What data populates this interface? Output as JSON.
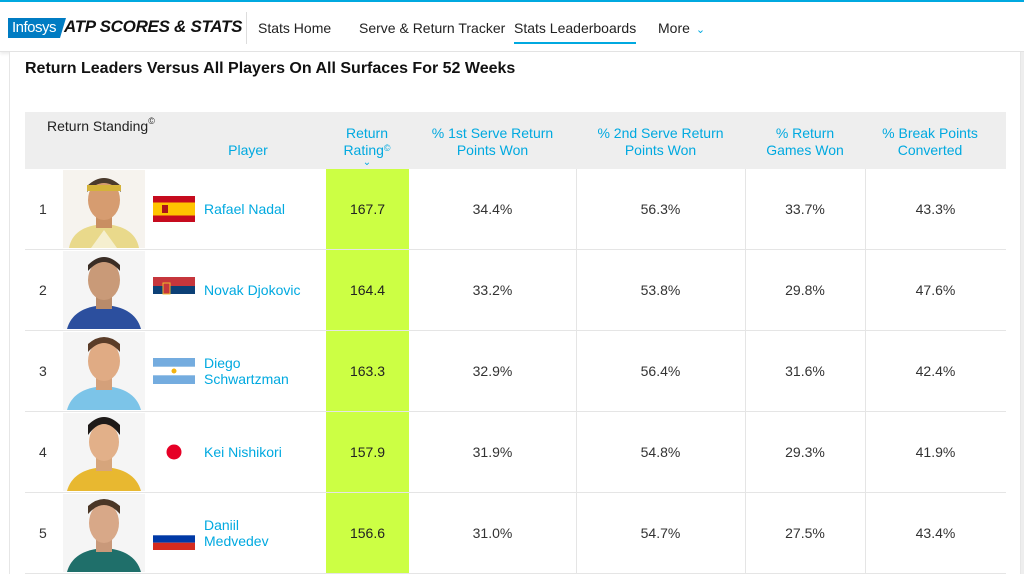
{
  "nav": {
    "infosys_logo": "Infosys",
    "brand": "ATP SCORES & STATS",
    "items": [
      {
        "label": "Stats Home"
      },
      {
        "label": "Serve & Return Tracker"
      },
      {
        "label": "Stats Leaderboards"
      },
      {
        "label": "More"
      }
    ],
    "active_item": "Stats Leaderboards",
    "accent": "#00a9e0"
  },
  "page": {
    "title": "Return Leaders Versus All Players On All Surfaces For 52 Weeks"
  },
  "table": {
    "headers": {
      "standing": "Return Standing",
      "player": "Player",
      "rating_l1": "Return",
      "rating_l2": "Rating",
      "first_l1": "% 1st Serve Return",
      "first_l2": "Points Won",
      "second_l1": "% 2nd Serve Return",
      "second_l2": "Points Won",
      "games_l1": "% Return",
      "games_l2": "Games Won",
      "bp_l1": "% Break Points",
      "bp_l2": "Converted",
      "copyright_mark": "©",
      "sort_icon": "chevron-down-icon"
    },
    "rating_highlight_color": "#ccff44",
    "rows": [
      {
        "rank": "1",
        "name_l1": "Rafael Nadal",
        "name_l2": "",
        "flag": "Spain",
        "rating": "167.7",
        "first": "34.4%",
        "second": "56.3%",
        "games": "33.7%",
        "bp": "43.3%"
      },
      {
        "rank": "2",
        "name_l1": "Novak Djokovic",
        "name_l2": "",
        "flag": "Serbia",
        "rating": "164.4",
        "first": "33.2%",
        "second": "53.8%",
        "games": "29.8%",
        "bp": "47.6%"
      },
      {
        "rank": "3",
        "name_l1": "Diego",
        "name_l2": "Schwartzman",
        "flag": "Argentina",
        "rating": "163.3",
        "first": "32.9%",
        "second": "56.4%",
        "games": "31.6%",
        "bp": "42.4%"
      },
      {
        "rank": "4",
        "name_l1": "Kei Nishikori",
        "name_l2": "",
        "flag": "Japan",
        "rating": "157.9",
        "first": "31.9%",
        "second": "54.8%",
        "games": "29.3%",
        "bp": "41.9%"
      },
      {
        "rank": "5",
        "name_l1": "Daniil",
        "name_l2": "Medvedev",
        "flag": "Russia",
        "rating": "156.6",
        "first": "31.0%",
        "second": "54.7%",
        "games": "27.5%",
        "bp": "43.4%"
      }
    ]
  }
}
